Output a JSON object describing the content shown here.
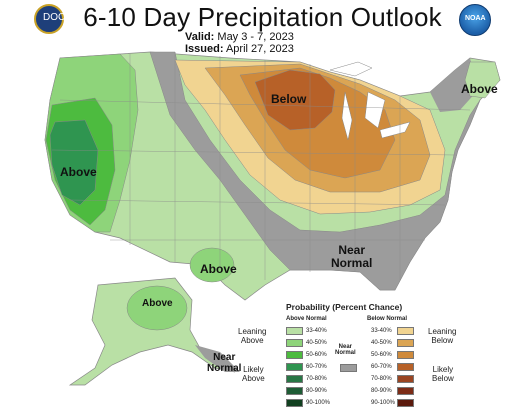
{
  "header": {
    "title": "6-10 Day Precipitation Outlook",
    "valid_label": "Valid:",
    "valid_value": "May 3 - 7, 2023",
    "issued_label": "Issued:",
    "issued_value": "April 27, 2023"
  },
  "logos": {
    "left": "DOC",
    "right": "NOAA"
  },
  "regions": {
    "above_west": "Above",
    "above_texas": "Above",
    "above_alaska": "Above",
    "above_northeast": "Above",
    "below_midwest": "Below",
    "near_normal_se_1": "Near",
    "near_normal_se_2": "Normal",
    "near_normal_ak_1": "Near",
    "near_normal_ak_2": "Normal"
  },
  "legend": {
    "title": "Probability (Percent Chance)",
    "above_head": "Above Normal",
    "below_head": "Below Normal",
    "near_head_1": "Near",
    "near_head_2": "Normal",
    "leaning_above": [
      "Leaning",
      "Above"
    ],
    "likely_above": [
      "Likely",
      "Above"
    ],
    "leaning_below": [
      "Leaning",
      "Below"
    ],
    "likely_below": [
      "Likely",
      "Below"
    ],
    "above_items": [
      {
        "label": "33-40%",
        "color": "#b9e0a5"
      },
      {
        "label": "40-50%",
        "color": "#8ed47a"
      },
      {
        "label": "50-60%",
        "color": "#4dbb3f"
      },
      {
        "label": "60-70%",
        "color": "#2f9550"
      },
      {
        "label": "70-80%",
        "color": "#287645"
      },
      {
        "label": "80-90%",
        "color": "#1e5c35"
      },
      {
        "label": "90-100%",
        "color": "#114020"
      }
    ],
    "below_items": [
      {
        "label": "33-40%",
        "color": "#f1d491"
      },
      {
        "label": "40-50%",
        "color": "#dba554"
      },
      {
        "label": "50-60%",
        "color": "#cf8a3b"
      },
      {
        "label": "60-70%",
        "color": "#b76128"
      },
      {
        "label": "70-80%",
        "color": "#9a4522"
      },
      {
        "label": "80-90%",
        "color": "#7c2c17"
      },
      {
        "label": "90-100%",
        "color": "#5b1a0d"
      }
    ],
    "near_color": "#9c9c9c"
  }
}
